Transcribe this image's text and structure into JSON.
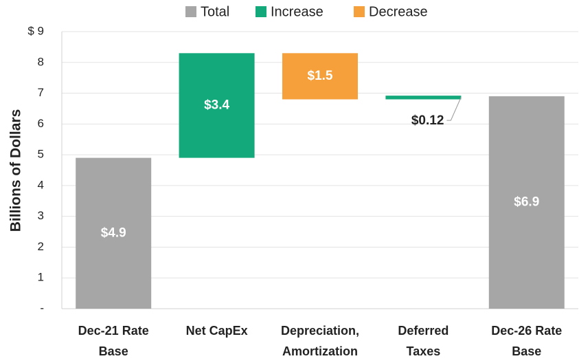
{
  "chart_data": {
    "type": "waterfall",
    "y_label": "Billions of Dollars",
    "series": [
      {
        "name": "Total",
        "color": "#a6a6a6"
      },
      {
        "name": "Increase",
        "color": "#13a97b"
      },
      {
        "name": "Decrease",
        "color": "#f5a03b"
      }
    ],
    "categories": [
      "Dec-21 Rate\nBase",
      "Net CapEx",
      "Depreciation,\nAmortization",
      "Deferred\nTaxes",
      "Dec-26 Rate\nBase"
    ],
    "kinds": [
      "Total",
      "Increase",
      "Decrease",
      "Increase",
      "Total"
    ],
    "values": [
      4.9,
      3.4,
      1.5,
      0.12,
      6.9
    ],
    "value_labels": [
      "$4.9",
      "$3.4",
      "$1.5",
      "$0.12",
      "$6.9"
    ],
    "ylim": [
      0,
      9
    ],
    "yticks": [
      {
        "value": 0,
        "label": "-"
      },
      1,
      2,
      3,
      4,
      5,
      6,
      7,
      8,
      {
        "value": 9,
        "label": "$ 9"
      }
    ],
    "grid": true,
    "legend": "top"
  }
}
